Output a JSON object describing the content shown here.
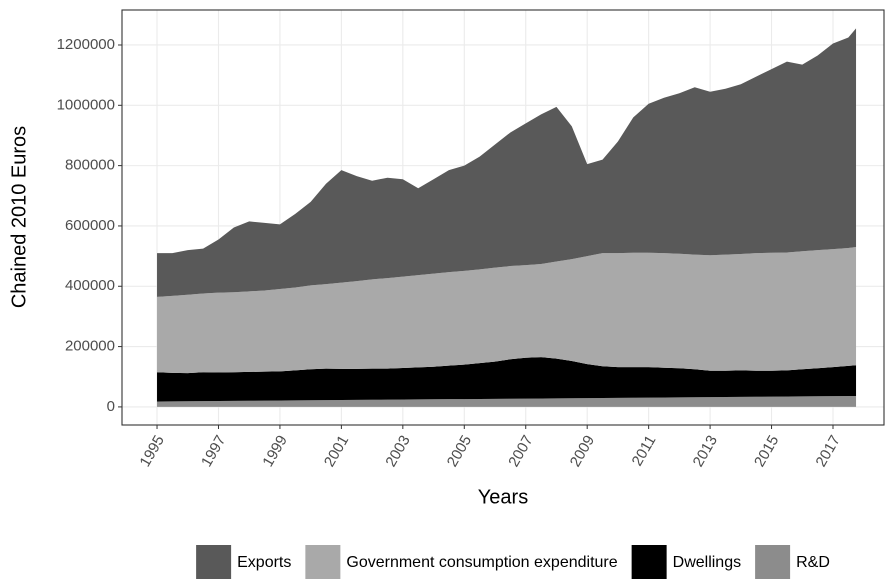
{
  "chart_data": {
    "type": "area",
    "x_label": "Years",
    "y_label": "Chained 2010 Euros",
    "x": [
      1995,
      1995.5,
      1996,
      1996.5,
      1997,
      1997.5,
      1998,
      1998.5,
      1999,
      1999.5,
      2000,
      2000.5,
      2001,
      2001.5,
      2002,
      2002.5,
      2003,
      2003.5,
      2004,
      2004.5,
      2005,
      2005.5,
      2006,
      2006.5,
      2007,
      2007.5,
      2008,
      2008.5,
      2009,
      2009.5,
      2010,
      2010.5,
      2011,
      2011.5,
      2012,
      2012.5,
      2013,
      2013.5,
      2014,
      2014.5,
      2015,
      2015.5,
      2016,
      2016.5,
      2017,
      2017.5,
      2017.75
    ],
    "series": [
      {
        "name": "Exports",
        "color": "#595959",
        "values": [
          145000,
          142000,
          148000,
          149000,
          176000,
          215000,
          232000,
          224000,
          214000,
          244000,
          277000,
          333000,
          373000,
          348000,
          327000,
          333000,
          323000,
          288000,
          313000,
          338000,
          349000,
          374000,
          408000,
          443000,
          470000,
          496000,
          513000,
          440000,
          305000,
          310000,
          370000,
          449000,
          494000,
          515000,
          532000,
          555000,
          542000,
          550000,
          563000,
          585000,
          609000,
          633000,
          619000,
          645000,
          682000,
          698000,
          725000
        ]
      },
      {
        "name": "Government consumption expenditure",
        "color": "#a9a9a9",
        "values": [
          250000,
          255000,
          260000,
          261000,
          265000,
          265000,
          267000,
          269000,
          273000,
          275000,
          278000,
          280000,
          286000,
          291000,
          296000,
          300000,
          303000,
          306000,
          309000,
          310000,
          311000,
          311000,
          312000,
          309000,
          307000,
          309000,
          322000,
          338000,
          358000,
          375000,
          378000,
          379000,
          379000,
          380000,
          380000,
          380000,
          383000,
          385000,
          386000,
          390000,
          391000,
          391000,
          391000,
          392000,
          391000,
          391000,
          392000
        ]
      },
      {
        "name": "Dwellings",
        "color": "#000000",
        "values": [
          97000,
          94600,
          93200,
          95800,
          94400,
          95000,
          95600,
          96200,
          96800,
          99400,
          103000,
          104600,
          103200,
          102800,
          103400,
          103000,
          104600,
          106200,
          107800,
          111400,
          114000,
          118600,
          123200,
          130800,
          135400,
          137000,
          131600,
          123200,
          112800,
          105400,
          102000,
          101600,
          101200,
          98800,
          96400,
          93000,
          87600,
          87200,
          87800,
          86400,
          86000,
          86600,
          90200,
          92800,
          96400,
          100000,
          101800
        ]
      },
      {
        "name": "R&D",
        "color": "#8c8c8c",
        "values": [
          18000,
          18400,
          18800,
          19200,
          19600,
          20000,
          20400,
          20800,
          21200,
          21600,
          22000,
          22400,
          22800,
          23200,
          23600,
          24000,
          24400,
          24800,
          25200,
          25600,
          26000,
          26400,
          26800,
          27200,
          27600,
          28000,
          28400,
          28800,
          29200,
          29600,
          30000,
          30400,
          30800,
          31200,
          31600,
          32000,
          32400,
          32800,
          33200,
          33600,
          34000,
          34400,
          34800,
          35200,
          35600,
          36000,
          36200
        ]
      }
    ],
    "xlim": [
      1993.86,
      2018.66
    ],
    "xticks": [
      1995,
      1997,
      1999,
      2001,
      2003,
      2005,
      2007,
      2009,
      2011,
      2013,
      2015,
      2017
    ],
    "ylim": [
      -60000,
      1316000
    ],
    "yticks": [
      0,
      200000,
      400000,
      600000,
      800000,
      1000000,
      1200000
    ],
    "grid": true,
    "legend": "bottom"
  }
}
